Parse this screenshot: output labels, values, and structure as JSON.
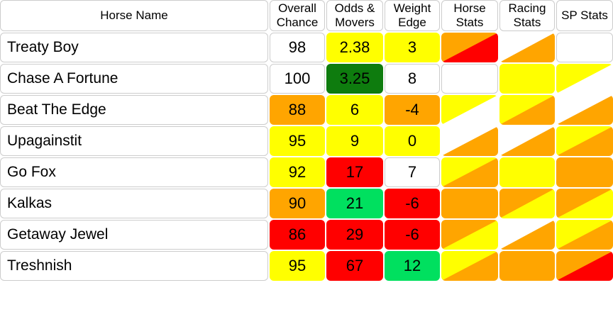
{
  "colors": {
    "white": "#FFFFFF",
    "yellow": "#FFFF00",
    "orange": "#FFA500",
    "red": "#FF0000",
    "green_dark": "#0E7C0E",
    "green_bright": "#00E05F",
    "border_gray": "#CCCCCC",
    "text": "#000000"
  },
  "table": {
    "headers": [
      "Horse Name",
      "Overall Chance",
      "Odds & Movers",
      "Weight Edge",
      "Horse Stats",
      "Racing Stats",
      "SP Stats"
    ],
    "column_names": [
      "overall-chance-cell",
      "odds-movers-cell",
      "weight-edge-cell",
      "horse-stats-cell",
      "racing-stats-cell",
      "sp-stats-cell"
    ],
    "rows": [
      {
        "name": "Treaty Boy",
        "cells": [
          {
            "text": "98",
            "bg": "white"
          },
          {
            "text": "2.38",
            "bg": "yellow"
          },
          {
            "text": "3",
            "bg": "yellow"
          },
          {
            "text": "",
            "bg": "orange|red"
          },
          {
            "text": "",
            "bg": "white|orange"
          },
          {
            "text": "",
            "bg": "white"
          }
        ]
      },
      {
        "name": "Chase A Fortune",
        "cells": [
          {
            "text": "100",
            "bg": "white"
          },
          {
            "text": "3.25",
            "bg": "green_dark"
          },
          {
            "text": "8",
            "bg": "white"
          },
          {
            "text": "",
            "bg": "white"
          },
          {
            "text": "",
            "bg": "yellow"
          },
          {
            "text": "",
            "bg": "yellow|white"
          }
        ]
      },
      {
        "name": "Beat The Edge",
        "cells": [
          {
            "text": "88",
            "bg": "orange"
          },
          {
            "text": "6",
            "bg": "yellow"
          },
          {
            "text": "-4",
            "bg": "orange"
          },
          {
            "text": "",
            "bg": "yellow|white"
          },
          {
            "text": "",
            "bg": "yellow|orange"
          },
          {
            "text": "",
            "bg": "white|orange"
          }
        ]
      },
      {
        "name": "Upagainstit",
        "cells": [
          {
            "text": "95",
            "bg": "yellow"
          },
          {
            "text": "9",
            "bg": "yellow"
          },
          {
            "text": "0",
            "bg": "yellow"
          },
          {
            "text": "",
            "bg": "white|orange"
          },
          {
            "text": "",
            "bg": "white|orange"
          },
          {
            "text": "",
            "bg": "yellow|orange"
          }
        ]
      },
      {
        "name": "Go Fox",
        "cells": [
          {
            "text": "92",
            "bg": "yellow"
          },
          {
            "text": "17",
            "bg": "red"
          },
          {
            "text": "7",
            "bg": "white"
          },
          {
            "text": "",
            "bg": "yellow|orange"
          },
          {
            "text": "",
            "bg": "yellow"
          },
          {
            "text": "",
            "bg": "orange"
          }
        ]
      },
      {
        "name": "Kalkas",
        "cells": [
          {
            "text": "90",
            "bg": "orange"
          },
          {
            "text": "21",
            "bg": "green_bright"
          },
          {
            "text": "-6",
            "bg": "red"
          },
          {
            "text": "",
            "bg": "orange"
          },
          {
            "text": "",
            "bg": "orange|yellow"
          },
          {
            "text": "",
            "bg": "orange|yellow"
          }
        ]
      },
      {
        "name": "Getaway Jewel",
        "cells": [
          {
            "text": "86",
            "bg": "red"
          },
          {
            "text": "29",
            "bg": "red"
          },
          {
            "text": "-6",
            "bg": "red"
          },
          {
            "text": "",
            "bg": "orange|yellow"
          },
          {
            "text": "",
            "bg": "white|orange"
          },
          {
            "text": "",
            "bg": "yellow|orange"
          }
        ]
      },
      {
        "name": "Treshnish",
        "cells": [
          {
            "text": "95",
            "bg": "yellow"
          },
          {
            "text": "67",
            "bg": "red"
          },
          {
            "text": "12",
            "bg": "green_bright"
          },
          {
            "text": "",
            "bg": "yellow|orange"
          },
          {
            "text": "",
            "bg": "orange"
          },
          {
            "text": "",
            "bg": "orange|red"
          }
        ]
      }
    ]
  }
}
